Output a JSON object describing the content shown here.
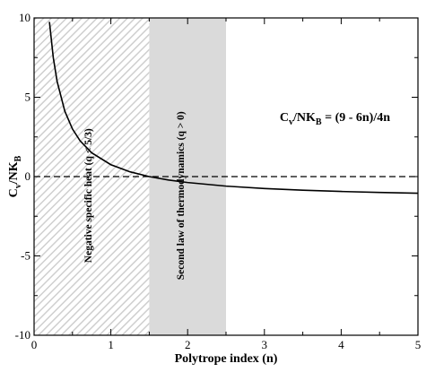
{
  "chart_data": {
    "type": "line",
    "xlabel": "Polytrope index (n)",
    "ylabel": {
      "main": "C",
      "sub1": "v",
      "mid": "/NK",
      "sub2": "B"
    },
    "xlim": [
      0,
      5
    ],
    "ylim": [
      -10,
      10
    ],
    "x_ticks": [
      0,
      1,
      2,
      3,
      4,
      5
    ],
    "x_tick_labels": [
      "0",
      "1",
      "2",
      "3",
      "4",
      "5"
    ],
    "y_ticks": [
      -10,
      -5,
      0,
      5,
      10
    ],
    "y_tick_labels": [
      "-10",
      "-5",
      "0",
      "5",
      "10"
    ],
    "grid": false,
    "series": [
      {
        "formula": "(9 - 6n)/4n",
        "style": "solid",
        "color": "#000000",
        "x": [
          0.2,
          0.25,
          0.3,
          0.4,
          0.5,
          0.6,
          0.75,
          1.0,
          1.25,
          1.5,
          1.75,
          2.0,
          2.5,
          3.0,
          3.5,
          4.0,
          4.5,
          5.0
        ],
        "y": [
          9.75,
          7.5,
          6.0,
          4.125,
          3.0,
          2.25,
          1.5,
          0.75,
          0.3,
          0.0,
          -0.214,
          -0.375,
          -0.6,
          -0.75,
          -0.857,
          -0.938,
          -1.0,
          -1.05
        ]
      }
    ],
    "reference_lines": [
      {
        "y": 0,
        "style": "dashed",
        "color": "#000000"
      }
    ],
    "regions": [
      {
        "x_range": [
          0,
          1.5
        ],
        "fill": "hatched",
        "color": "#cfcfcf",
        "label": "Negative specific heat (q < 5/3)",
        "label_x": 0.75,
        "label_y": -1.2
      },
      {
        "x_range": [
          1.5,
          2.5
        ],
        "fill": "solid",
        "color": "#dadada",
        "label": "Second law of thermodynamics (q > 0)",
        "label_x": 1.95,
        "label_y": -1.2
      }
    ],
    "annotation": {
      "main": "C",
      "sub1": "v",
      "mid": "/NK",
      "sub2": "B",
      "tail": " = (9 - 6n)/4n",
      "x": 3.2,
      "y": 3.5
    }
  }
}
